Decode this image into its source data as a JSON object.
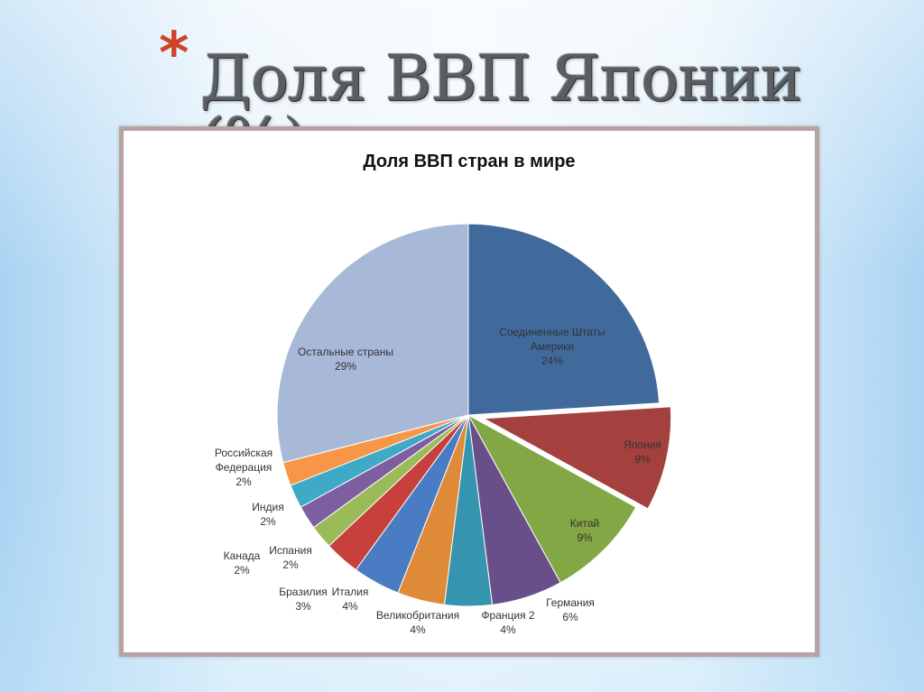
{
  "slide": {
    "title": "Доля ВВП  Японии (%)",
    "bullet": "*"
  },
  "chart_data": {
    "type": "pie",
    "title": "Доля ВВП стран  в мире",
    "start": "top, clockwise",
    "exploded": [
      "Япония"
    ],
    "slices": [
      {
        "label": [
          "Соединенные Штаты",
          "Америки"
        ],
        "value": 24,
        "pct_label": "24%",
        "color": "#40699c"
      },
      {
        "label": [
          "Япония"
        ],
        "value": 9,
        "pct_label": "9%",
        "color": "#a4403d"
      },
      {
        "label": [
          "Китай"
        ],
        "value": 9,
        "pct_label": "9%",
        "color": "#84a745"
      },
      {
        "label": [
          "Германия"
        ],
        "value": 6,
        "pct_label": "6%",
        "color": "#684f8a"
      },
      {
        "label": [
          "Франция 2"
        ],
        "value": 4,
        "pct_label": "4%",
        "color": "#3594ae"
      },
      {
        "label": [
          "Великобритания"
        ],
        "value": 4,
        "pct_label": "4%",
        "color": "#df8a39"
      },
      {
        "label": [
          "Италия"
        ],
        "value": 4,
        "pct_label": "4%",
        "color": "#4a7cc3"
      },
      {
        "label": [
          "Бразилия"
        ],
        "value": 3,
        "pct_label": "3%",
        "color": "#c7403c"
      },
      {
        "label": [
          "Испания"
        ],
        "value": 2,
        "pct_label": "2%",
        "color": "#9bbb59"
      },
      {
        "label": [
          "Канада"
        ],
        "value": 2,
        "pct_label": "2%",
        "color": "#7d5ea1"
      },
      {
        "label": [
          "Индия"
        ],
        "value": 2,
        "pct_label": "2%",
        "color": "#3faac6"
      },
      {
        "label": [
          "Российская",
          "Федерация"
        ],
        "value": 2,
        "pct_label": "2%",
        "color": "#f79646"
      },
      {
        "label": [
          "Остальные страны"
        ],
        "value": 29,
        "pct_label": "29%",
        "color": "#a8b9d8"
      }
    ]
  }
}
